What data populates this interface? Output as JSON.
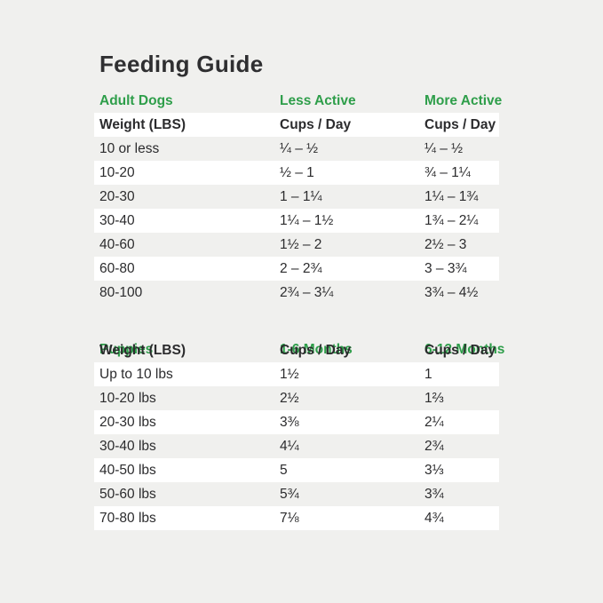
{
  "page": {
    "title": "Feeding Guide"
  },
  "colors": {
    "accent_green": "#2E9E4A",
    "text_dark": "#2B2B2D",
    "background": "#F0F0EE",
    "row_highlight": "#FFFFFF"
  },
  "adult": {
    "section_label": "Adult Dogs",
    "col2_label": "Less Active",
    "col3_label": "More Active",
    "header": {
      "weight": "Weight (LBS)",
      "col2": "Cups / Day",
      "col3": "Cups / Day"
    },
    "rows": [
      {
        "weight": "10 or less",
        "less_active": "¼ – ½",
        "more_active": "¼ – ½"
      },
      {
        "weight": "10-20",
        "less_active": "½ – 1",
        "more_active": "¾ – 1¼"
      },
      {
        "weight": "20-30",
        "less_active": "1 – 1¼",
        "more_active": "1¼ – 1¾"
      },
      {
        "weight": "30-40",
        "less_active": "1¼ – 1½",
        "more_active": "1¾ – 2¼"
      },
      {
        "weight": "40-60",
        "less_active": "1½ – 2",
        "more_active": "2½ – 3"
      },
      {
        "weight": "60-80",
        "less_active": "2 – 2¾",
        "more_active": "3 – 3¾"
      },
      {
        "weight": "80-100",
        "less_active": "2¾ – 3¼",
        "more_active": "3¾ – 4½"
      }
    ]
  },
  "puppies": {
    "section_label": "Puppies",
    "col2_label": "1-6 Months",
    "col3_label": "6-12 Months",
    "header": {
      "weight": "Weight (LBS)",
      "col2": "Cups / Day",
      "col3": "Cups / Day"
    },
    "rows": [
      {
        "weight": "Up to 10 lbs",
        "months_1_6": "1½",
        "months_6_12": "1"
      },
      {
        "weight": "10-20 lbs",
        "months_1_6": "2½",
        "months_6_12": "1⅔"
      },
      {
        "weight": "20-30 lbs",
        "months_1_6": "3⅜",
        "months_6_12": "2¼"
      },
      {
        "weight": "30-40 lbs",
        "months_1_6": "4¼",
        "months_6_12": "2¾"
      },
      {
        "weight": "40-50 lbs",
        "months_1_6": "5",
        "months_6_12": "3⅓"
      },
      {
        "weight": "50-60 lbs",
        "months_1_6": "5¾",
        "months_6_12": "3¾"
      },
      {
        "weight": "70-80 lbs",
        "months_1_6": "7⅛",
        "months_6_12": "4¾"
      }
    ]
  },
  "chart_data": [
    {
      "type": "table",
      "title": "Adult Dogs",
      "columns": [
        "Weight (LBS)",
        "Less Active Cups / Day",
        "More Active Cups / Day"
      ],
      "rows": [
        [
          "10 or less",
          "¼ – ½",
          "¼ – ½"
        ],
        [
          "10-20",
          "½ – 1",
          "¾ – 1¼"
        ],
        [
          "20-30",
          "1 – 1¼",
          "1¼ – 1¾"
        ],
        [
          "30-40",
          "1¼ – 1½",
          "1¾ – 2¼"
        ],
        [
          "40-60",
          "1½ – 2",
          "2½ – 3"
        ],
        [
          "60-80",
          "2 – 2¾",
          "3 – 3¾"
        ],
        [
          "80-100",
          "2¾ – 3¼",
          "3¾ – 4½"
        ]
      ]
    },
    {
      "type": "table",
      "title": "Puppies",
      "columns": [
        "Weight (LBS)",
        "1-6 Months Cups / Day",
        "6-12 Months Cups / Day"
      ],
      "rows": [
        [
          "Up to 10 lbs",
          "1½",
          "1"
        ],
        [
          "10-20 lbs",
          "2½",
          "1⅔"
        ],
        [
          "20-30 lbs",
          "3⅜",
          "2¼"
        ],
        [
          "30-40 lbs",
          "4¼",
          "2¾"
        ],
        [
          "40-50 lbs",
          "5",
          "3⅓"
        ],
        [
          "50-60 lbs",
          "5¾",
          "3¾"
        ],
        [
          "70-80 lbs",
          "7⅛",
          "4¾"
        ]
      ]
    }
  ]
}
